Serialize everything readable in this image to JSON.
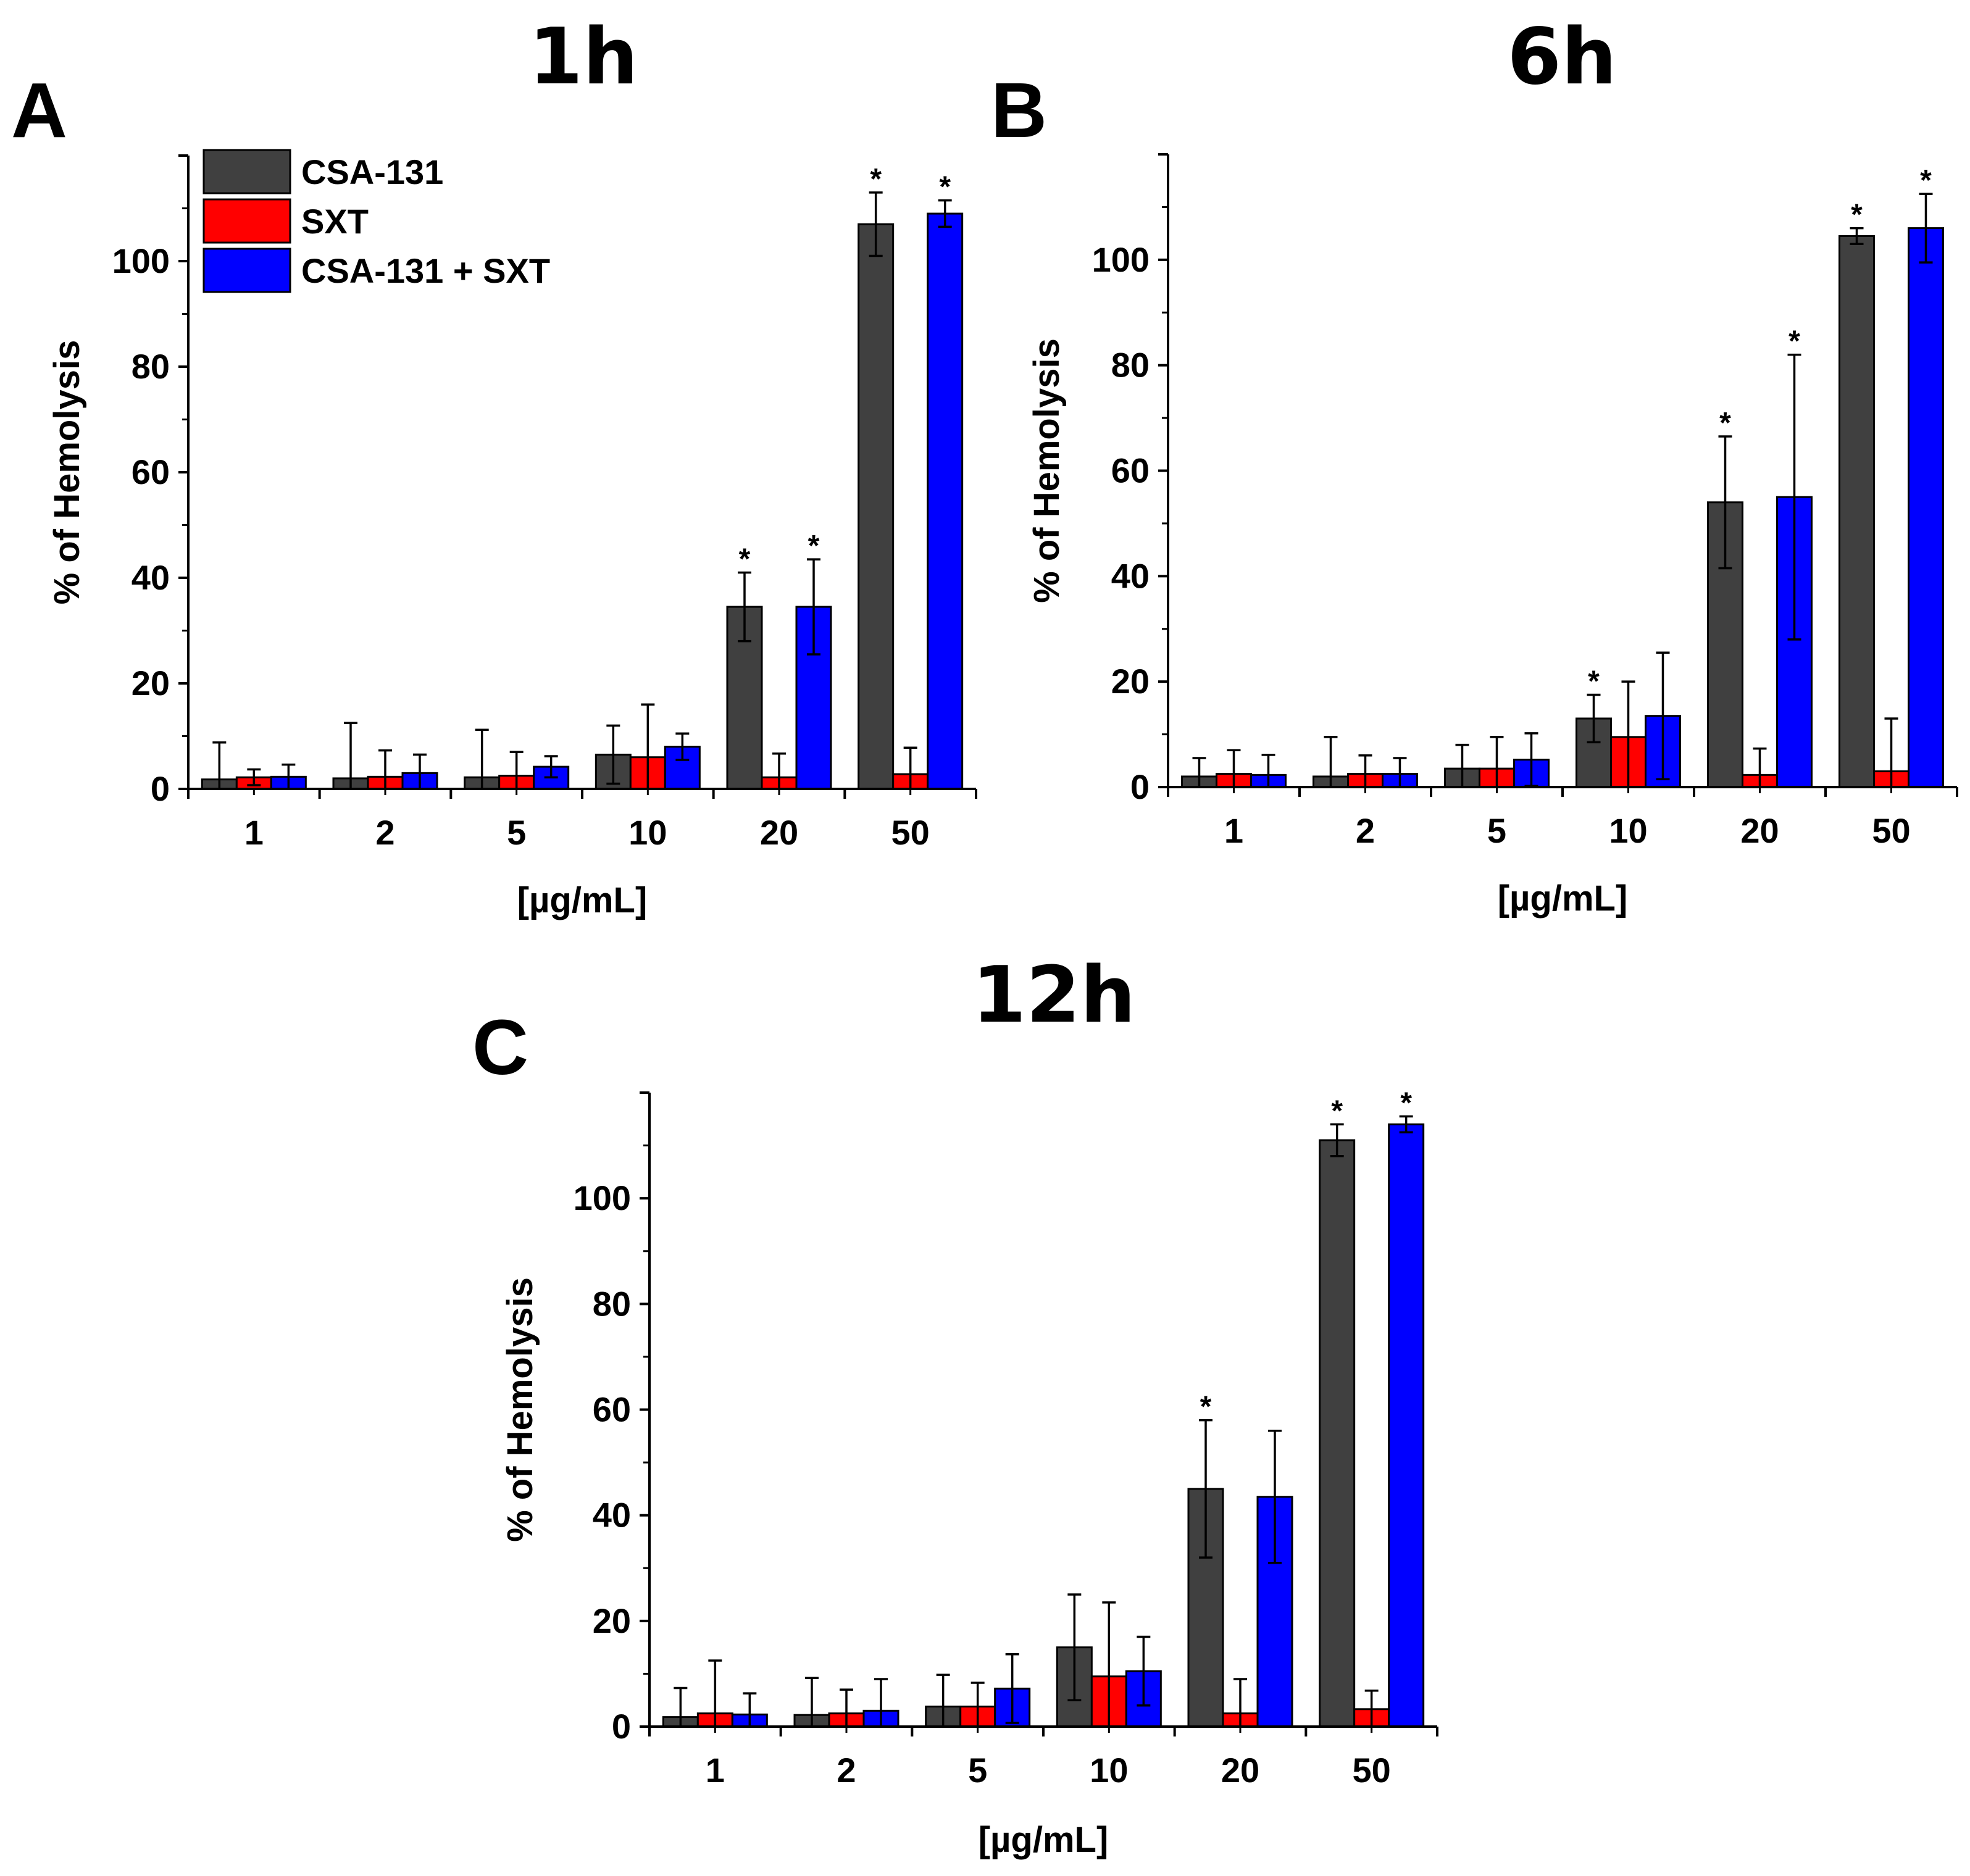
{
  "chart_data": [
    {
      "panel": "A",
      "title": "1h",
      "type": "bar",
      "xlabel": "[µg/mL]",
      "ylabel": "% of Hemolysis",
      "categories": [
        "1",
        "2",
        "5",
        "10",
        "20",
        "50"
      ],
      "yticks": [
        "0",
        "20",
        "40",
        "60",
        "80",
        "100"
      ],
      "ylim": [
        0,
        120
      ],
      "legend": true,
      "legend_position": "top-left",
      "series": [
        {
          "name": "CSA-131",
          "color": "#404040",
          "values": [
            1.8,
            2,
            2.2,
            6.5,
            34.5,
            107
          ],
          "errors": [
            7,
            10.5,
            9,
            5.5,
            6.5,
            6
          ],
          "significant": [
            false,
            false,
            false,
            false,
            true,
            true
          ]
        },
        {
          "name": "SXT",
          "color": "#ff0000",
          "values": [
            2.2,
            2.3,
            2.5,
            6,
            2.2,
            2.8
          ],
          "errors": [
            1.5,
            5,
            4.5,
            10,
            4.5,
            5
          ],
          "significant": [
            false,
            false,
            false,
            false,
            false,
            false
          ]
        },
        {
          "name": "CSA-131 + SXT",
          "color": "#0000ff",
          "values": [
            2.3,
            3,
            4.2,
            8,
            34.5,
            109
          ],
          "errors": [
            2.3,
            3.5,
            2,
            2.5,
            9,
            2.5
          ],
          "significant": [
            false,
            false,
            false,
            false,
            true,
            true
          ]
        }
      ],
      "significance_marker": "*"
    },
    {
      "panel": "B",
      "title": "6h",
      "type": "bar",
      "xlabel": "[µg/mL]",
      "ylabel": "% of Hemolysis",
      "categories": [
        "1",
        "2",
        "5",
        "10",
        "20",
        "50"
      ],
      "yticks": [
        "0",
        "20",
        "40",
        "60",
        "80",
        "100"
      ],
      "ylim": [
        0,
        120
      ],
      "legend": false,
      "series": [
        {
          "name": "CSA-131",
          "color": "#404040",
          "values": [
            2,
            2,
            3.5,
            13,
            54,
            104.5
          ],
          "errors": [
            3.5,
            7.5,
            4.5,
            4.5,
            12.5,
            1.5
          ],
          "significant": [
            false,
            false,
            false,
            true,
            true,
            true
          ]
        },
        {
          "name": "SXT",
          "color": "#ff0000",
          "values": [
            2.5,
            2.5,
            3.5,
            9.5,
            2.3,
            3
          ],
          "errors": [
            4.5,
            3.5,
            6,
            10.5,
            5,
            10
          ],
          "significant": [
            false,
            false,
            false,
            false,
            false,
            false
          ]
        },
        {
          "name": "CSA-131 + SXT",
          "color": "#0000ff",
          "values": [
            2.3,
            2.5,
            5.2,
            13.5,
            55,
            106
          ],
          "errors": [
            3.8,
            3,
            5,
            12,
            27,
            6.5
          ],
          "significant": [
            false,
            false,
            false,
            false,
            true,
            true
          ]
        }
      ],
      "significance_marker": "*"
    },
    {
      "panel": "C",
      "title": "12h",
      "type": "bar",
      "xlabel": "[µg/mL]",
      "ylabel": "% of Hemolysis",
      "categories": [
        "1",
        "2",
        "5",
        "10",
        "20",
        "50"
      ],
      "yticks": [
        "0",
        "20",
        "40",
        "60",
        "80",
        "100"
      ],
      "ylim": [
        0,
        120
      ],
      "legend": false,
      "series": [
        {
          "name": "CSA-131",
          "color": "#404040",
          "values": [
            1.8,
            2.2,
            3.8,
            15,
            45,
            111
          ],
          "errors": [
            5.5,
            7,
            6,
            10,
            13,
            3
          ],
          "significant": [
            false,
            false,
            false,
            false,
            true,
            true
          ]
        },
        {
          "name": "SXT",
          "color": "#ff0000",
          "values": [
            2.5,
            2.5,
            3.8,
            9.5,
            2.5,
            3.3
          ],
          "errors": [
            10,
            4.5,
            4.5,
            14,
            6.5,
            3.5
          ],
          "significant": [
            false,
            false,
            false,
            false,
            false,
            false
          ]
        },
        {
          "name": "CSA-131 + SXT",
          "color": "#0000ff",
          "values": [
            2.3,
            3,
            7.2,
            10.5,
            43.5,
            114
          ],
          "errors": [
            4,
            6,
            6.5,
            6.5,
            12.5,
            1.5
          ],
          "significant": [
            false,
            false,
            false,
            false,
            false,
            true
          ]
        }
      ],
      "significance_marker": "*"
    }
  ]
}
